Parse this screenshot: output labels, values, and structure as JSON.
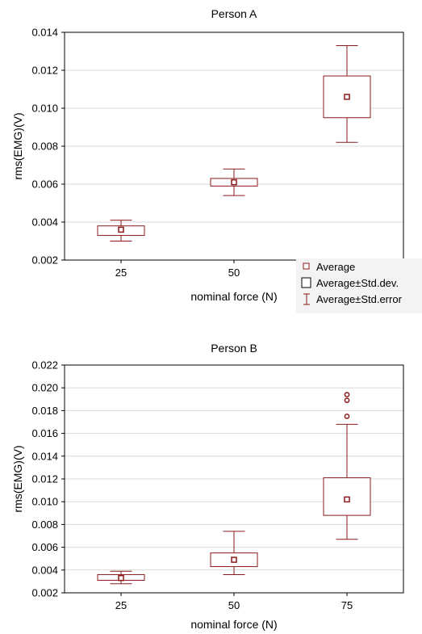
{
  "colors": {
    "mark": "#8b1a1a",
    "grid": "#d9d9d9",
    "axis": "#000000"
  },
  "legend": {
    "items": [
      {
        "label": "Average",
        "symbol": "square-point"
      },
      {
        "label": "Average±Std.dev.",
        "symbol": "box"
      },
      {
        "label": "Average±Std.error",
        "symbol": "whisker"
      }
    ]
  },
  "chart_data": [
    {
      "type": "box",
      "title": "Person A",
      "xlabel": "nominal force (N)",
      "ylabel": "rms(EMG)(V)",
      "ylim": [
        0.002,
        0.014
      ],
      "yticks": [
        "0.002",
        "0.004",
        "0.006",
        "0.008",
        "0.010",
        "0.012",
        "0.014"
      ],
      "grid": true,
      "legend": "bottom-right",
      "categories": [
        "25",
        "50"
      ],
      "boxes": [
        {
          "x": "25",
          "average": 0.0036,
          "box_low": 0.0033,
          "box_high": 0.0038,
          "whisker_low": 0.003,
          "whisker_high": 0.0041,
          "outliers": []
        },
        {
          "x": "50",
          "average": 0.0061,
          "box_low": 0.0059,
          "box_high": 0.0063,
          "whisker_low": 0.0054,
          "whisker_high": 0.0068,
          "outliers": []
        },
        {
          "x": "",
          "average": 0.0106,
          "box_low": 0.0095,
          "box_high": 0.0117,
          "whisker_low": 0.0082,
          "whisker_high": 0.0133,
          "outliers": []
        }
      ]
    },
    {
      "type": "box",
      "title": "Person B",
      "xlabel": "nominal force (N)",
      "ylabel": "rms(EMG)(V)",
      "ylim": [
        0.002,
        0.022
      ],
      "yticks": [
        "0.002",
        "0.004",
        "0.006",
        "0.008",
        "0.010",
        "0.012",
        "0.014",
        "0.016",
        "0.018",
        "0.020",
        "0.022"
      ],
      "grid": true,
      "categories": [
        "25",
        "50",
        "75"
      ],
      "boxes": [
        {
          "x": "25",
          "average": 0.0033,
          "box_low": 0.0031,
          "box_high": 0.0036,
          "whisker_low": 0.0028,
          "whisker_high": 0.0039,
          "outliers": []
        },
        {
          "x": "50",
          "average": 0.0049,
          "box_low": 0.0043,
          "box_high": 0.0055,
          "whisker_low": 0.0036,
          "whisker_high": 0.0074,
          "outliers": []
        },
        {
          "x": "75",
          "average": 0.0102,
          "box_low": 0.0088,
          "box_high": 0.0121,
          "whisker_low": 0.0067,
          "whisker_high": 0.0168,
          "outliers": [
            0.0175,
            0.0189,
            0.0194
          ]
        }
      ]
    }
  ]
}
